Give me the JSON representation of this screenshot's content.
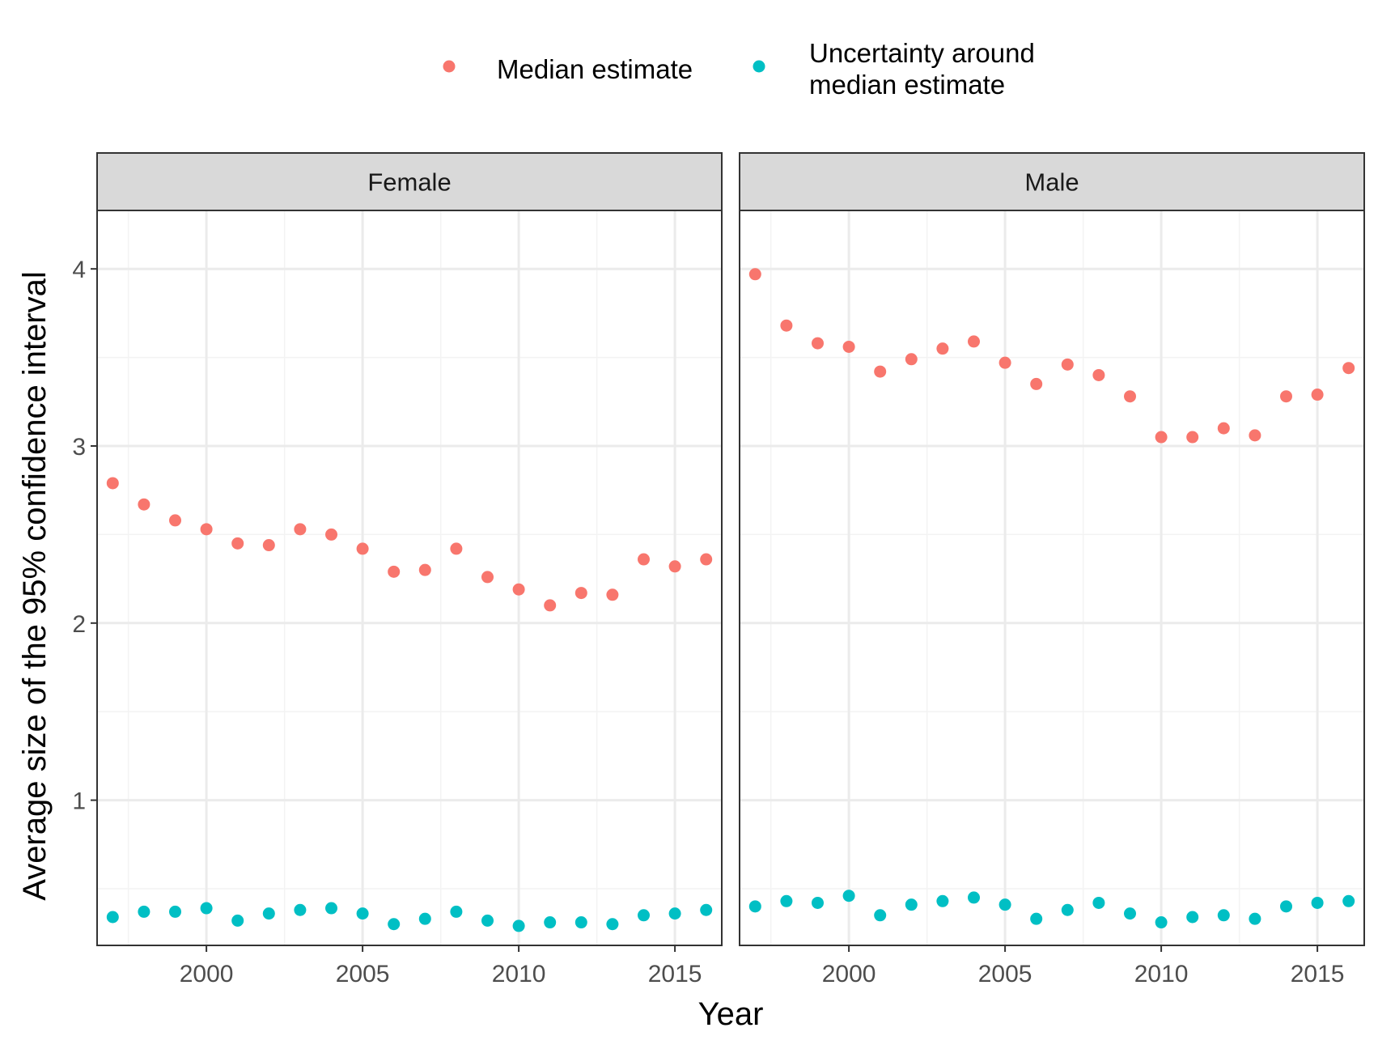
{
  "chart_data": {
    "type": "scatter",
    "xlabel": "Year",
    "ylabel": "Average size of the 95% confidence interval",
    "xlim": [
      1996.5,
      2016.5
    ],
    "ylim": [
      0.18,
      4.33
    ],
    "x_ticks": [
      2000,
      2005,
      2010,
      2015
    ],
    "y_ticks": [
      1,
      2,
      3,
      4
    ],
    "grid": true,
    "legend_position": "top",
    "legend": {
      "entries": [
        {
          "series": "median",
          "lines": [
            "Median estimate"
          ]
        },
        {
          "series": "uncertainty",
          "lines": [
            "Uncertainty around",
            "median estimate"
          ]
        }
      ]
    },
    "x": [
      1997,
      1998,
      1999,
      2000,
      2001,
      2002,
      2003,
      2004,
      2005,
      2006,
      2007,
      2008,
      2009,
      2010,
      2011,
      2012,
      2013,
      2014,
      2015,
      2016
    ],
    "panels": [
      {
        "name": "Female",
        "series": [
          {
            "name": "Median estimate",
            "key": "median",
            "values": [
              2.79,
              2.67,
              2.58,
              2.53,
              2.45,
              2.44,
              2.53,
              2.5,
              2.42,
              2.29,
              2.3,
              2.42,
              2.26,
              2.19,
              2.1,
              2.17,
              2.16,
              2.36,
              2.32,
              2.36
            ]
          },
          {
            "name": "Uncertainty around median estimate",
            "key": "uncertainty",
            "values": [
              0.34,
              0.37,
              0.37,
              0.39,
              0.32,
              0.36,
              0.38,
              0.39,
              0.36,
              0.3,
              0.33,
              0.37,
              0.32,
              0.29,
              0.31,
              0.31,
              0.3,
              0.35,
              0.36,
              0.38
            ]
          }
        ]
      },
      {
        "name": "Male",
        "series": [
          {
            "name": "Median estimate",
            "key": "median",
            "values": [
              3.97,
              3.68,
              3.58,
              3.56,
              3.42,
              3.49,
              3.55,
              3.59,
              3.47,
              3.35,
              3.46,
              3.4,
              3.28,
              3.05,
              3.05,
              3.1,
              3.06,
              3.28,
              3.29,
              3.44
            ]
          },
          {
            "name": "Uncertainty around median estimate",
            "key": "uncertainty",
            "values": [
              0.4,
              0.43,
              0.42,
              0.46,
              0.35,
              0.41,
              0.43,
              0.45,
              0.41,
              0.33,
              0.38,
              0.42,
              0.36,
              0.31,
              0.34,
              0.35,
              0.33,
              0.4,
              0.42,
              0.43
            ]
          }
        ]
      }
    ],
    "colors": {
      "median": "#f8766d",
      "uncertainty": "#00bfc4",
      "strip_fill": "#d9d9d9",
      "grid_major": "#ebebeb",
      "grid_minor": "#f3f3f3",
      "panel_border": "#333333"
    }
  }
}
